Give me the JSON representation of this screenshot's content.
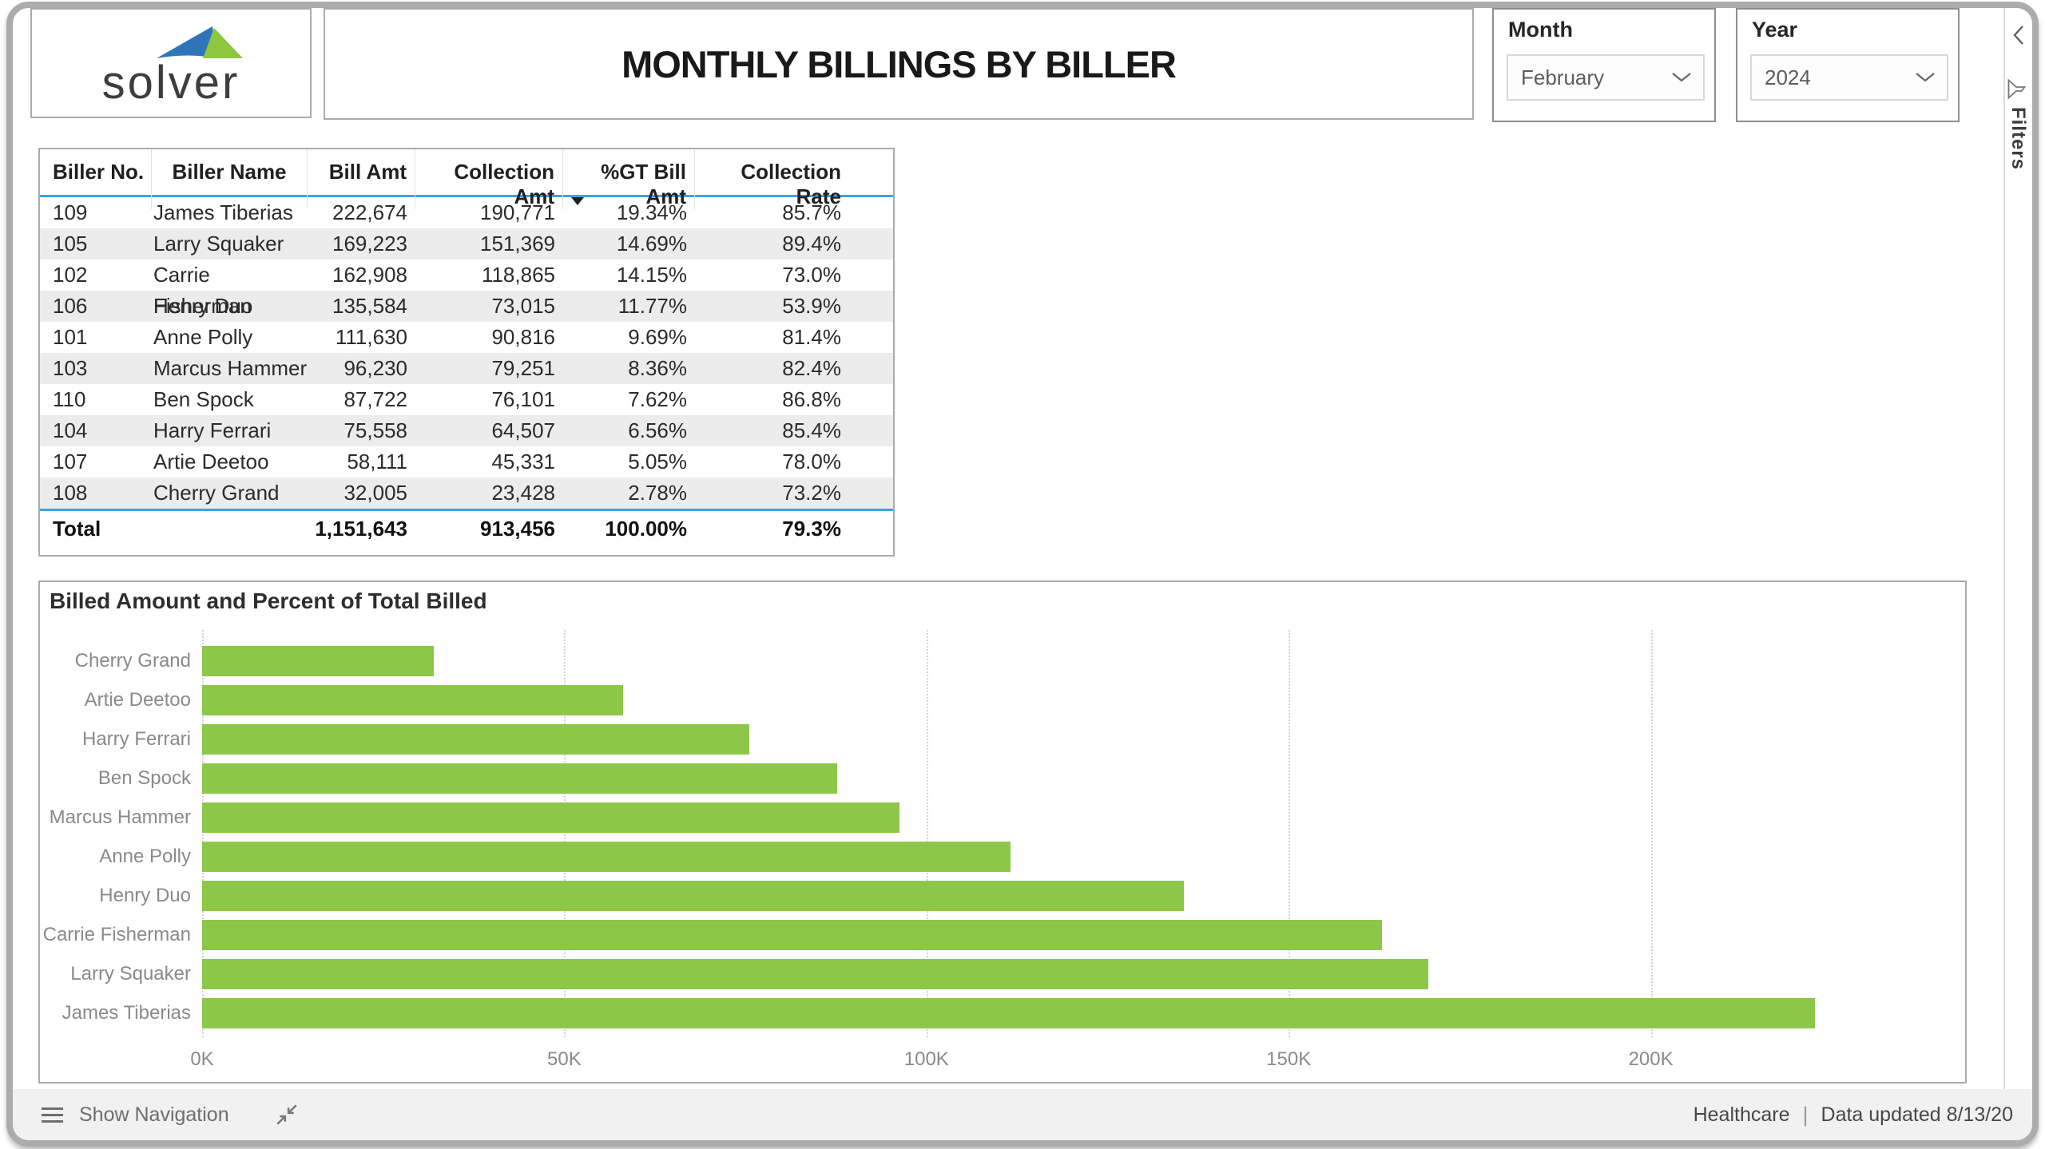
{
  "header": {
    "logo_text": "solver",
    "title": "MONTHLY BILLINGS BY BILLER",
    "slicers": {
      "month": {
        "label": "Month",
        "value": "February"
      },
      "year": {
        "label": "Year",
        "value": "2024"
      }
    }
  },
  "filters_pane": {
    "label": "Filters"
  },
  "table": {
    "columns": [
      "Biller No.",
      "Biller Name",
      "Bill Amt",
      "Collection Amt",
      "%GT Bill Amt",
      "Collection Rate"
    ],
    "sort": {
      "column": "%GT Bill Amt",
      "direction": "descending"
    },
    "rows": [
      {
        "no": "109",
        "name": "James Tiberias",
        "bill": "222,674",
        "coll": "190,771",
        "pct": "19.34%",
        "rate": "85.7%"
      },
      {
        "no": "105",
        "name": "Larry Squaker",
        "bill": "169,223",
        "coll": "151,369",
        "pct": "14.69%",
        "rate": "89.4%"
      },
      {
        "no": "102",
        "name": "Carrie Fisherman",
        "bill": "162,908",
        "coll": "118,865",
        "pct": "14.15%",
        "rate": "73.0%"
      },
      {
        "no": "106",
        "name": "Henry Duo",
        "bill": "135,584",
        "coll": "73,015",
        "pct": "11.77%",
        "rate": "53.9%"
      },
      {
        "no": "101",
        "name": "Anne Polly",
        "bill": "111,630",
        "coll": "90,816",
        "pct": "9.69%",
        "rate": "81.4%"
      },
      {
        "no": "103",
        "name": "Marcus Hammer",
        "bill": "96,230",
        "coll": "79,251",
        "pct": "8.36%",
        "rate": "82.4%"
      },
      {
        "no": "110",
        "name": "Ben Spock",
        "bill": "87,722",
        "coll": "76,101",
        "pct": "7.62%",
        "rate": "86.8%"
      },
      {
        "no": "104",
        "name": "Harry Ferrari",
        "bill": "75,558",
        "coll": "64,507",
        "pct": "6.56%",
        "rate": "85.4%"
      },
      {
        "no": "107",
        "name": "Artie Deetoo",
        "bill": "58,111",
        "coll": "45,331",
        "pct": "5.05%",
        "rate": "78.0%"
      },
      {
        "no": "108",
        "name": "Cherry Grand",
        "bill": "32,005",
        "coll": "23,428",
        "pct": "2.78%",
        "rate": "73.2%"
      }
    ],
    "total": {
      "label": "Total",
      "bill": "1,151,643",
      "coll": "913,456",
      "pct": "100.00%",
      "rate": "79.3%"
    }
  },
  "chart_data": {
    "type": "bar",
    "orientation": "horizontal",
    "title": "Billed Amount and Percent of Total Billed",
    "categories": [
      "Cherry Grand",
      "Artie Deetoo",
      "Harry Ferrari",
      "Ben Spock",
      "Marcus Hammer",
      "Anne Polly",
      "Henry Duo",
      "Carrie Fisherman",
      "Larry Squaker",
      "James Tiberias"
    ],
    "values": [
      32005,
      58111,
      75558,
      87722,
      96230,
      111630,
      135584,
      162908,
      169223,
      222674
    ],
    "xlabel": "",
    "ylabel": "",
    "x_ticks": [
      "0K",
      "50K",
      "100K",
      "150K",
      "200K"
    ],
    "x_tick_values": [
      0,
      50000,
      100000,
      150000,
      200000
    ],
    "xlim": [
      0,
      242500
    ],
    "grid": "vertical-dotted",
    "legend": "none",
    "bar_color": "#8DC74A"
  },
  "footer": {
    "show_navigation": "Show Navigation",
    "dataset_name": "Healthcare",
    "separator": "|",
    "data_updated": "Data updated 8/13/20"
  },
  "colors": {
    "bar_green": "#8DC74A",
    "table_accent_blue": "#3FA3DF",
    "logo_blue": "#2E74B9",
    "logo_green": "#8DC63F"
  }
}
